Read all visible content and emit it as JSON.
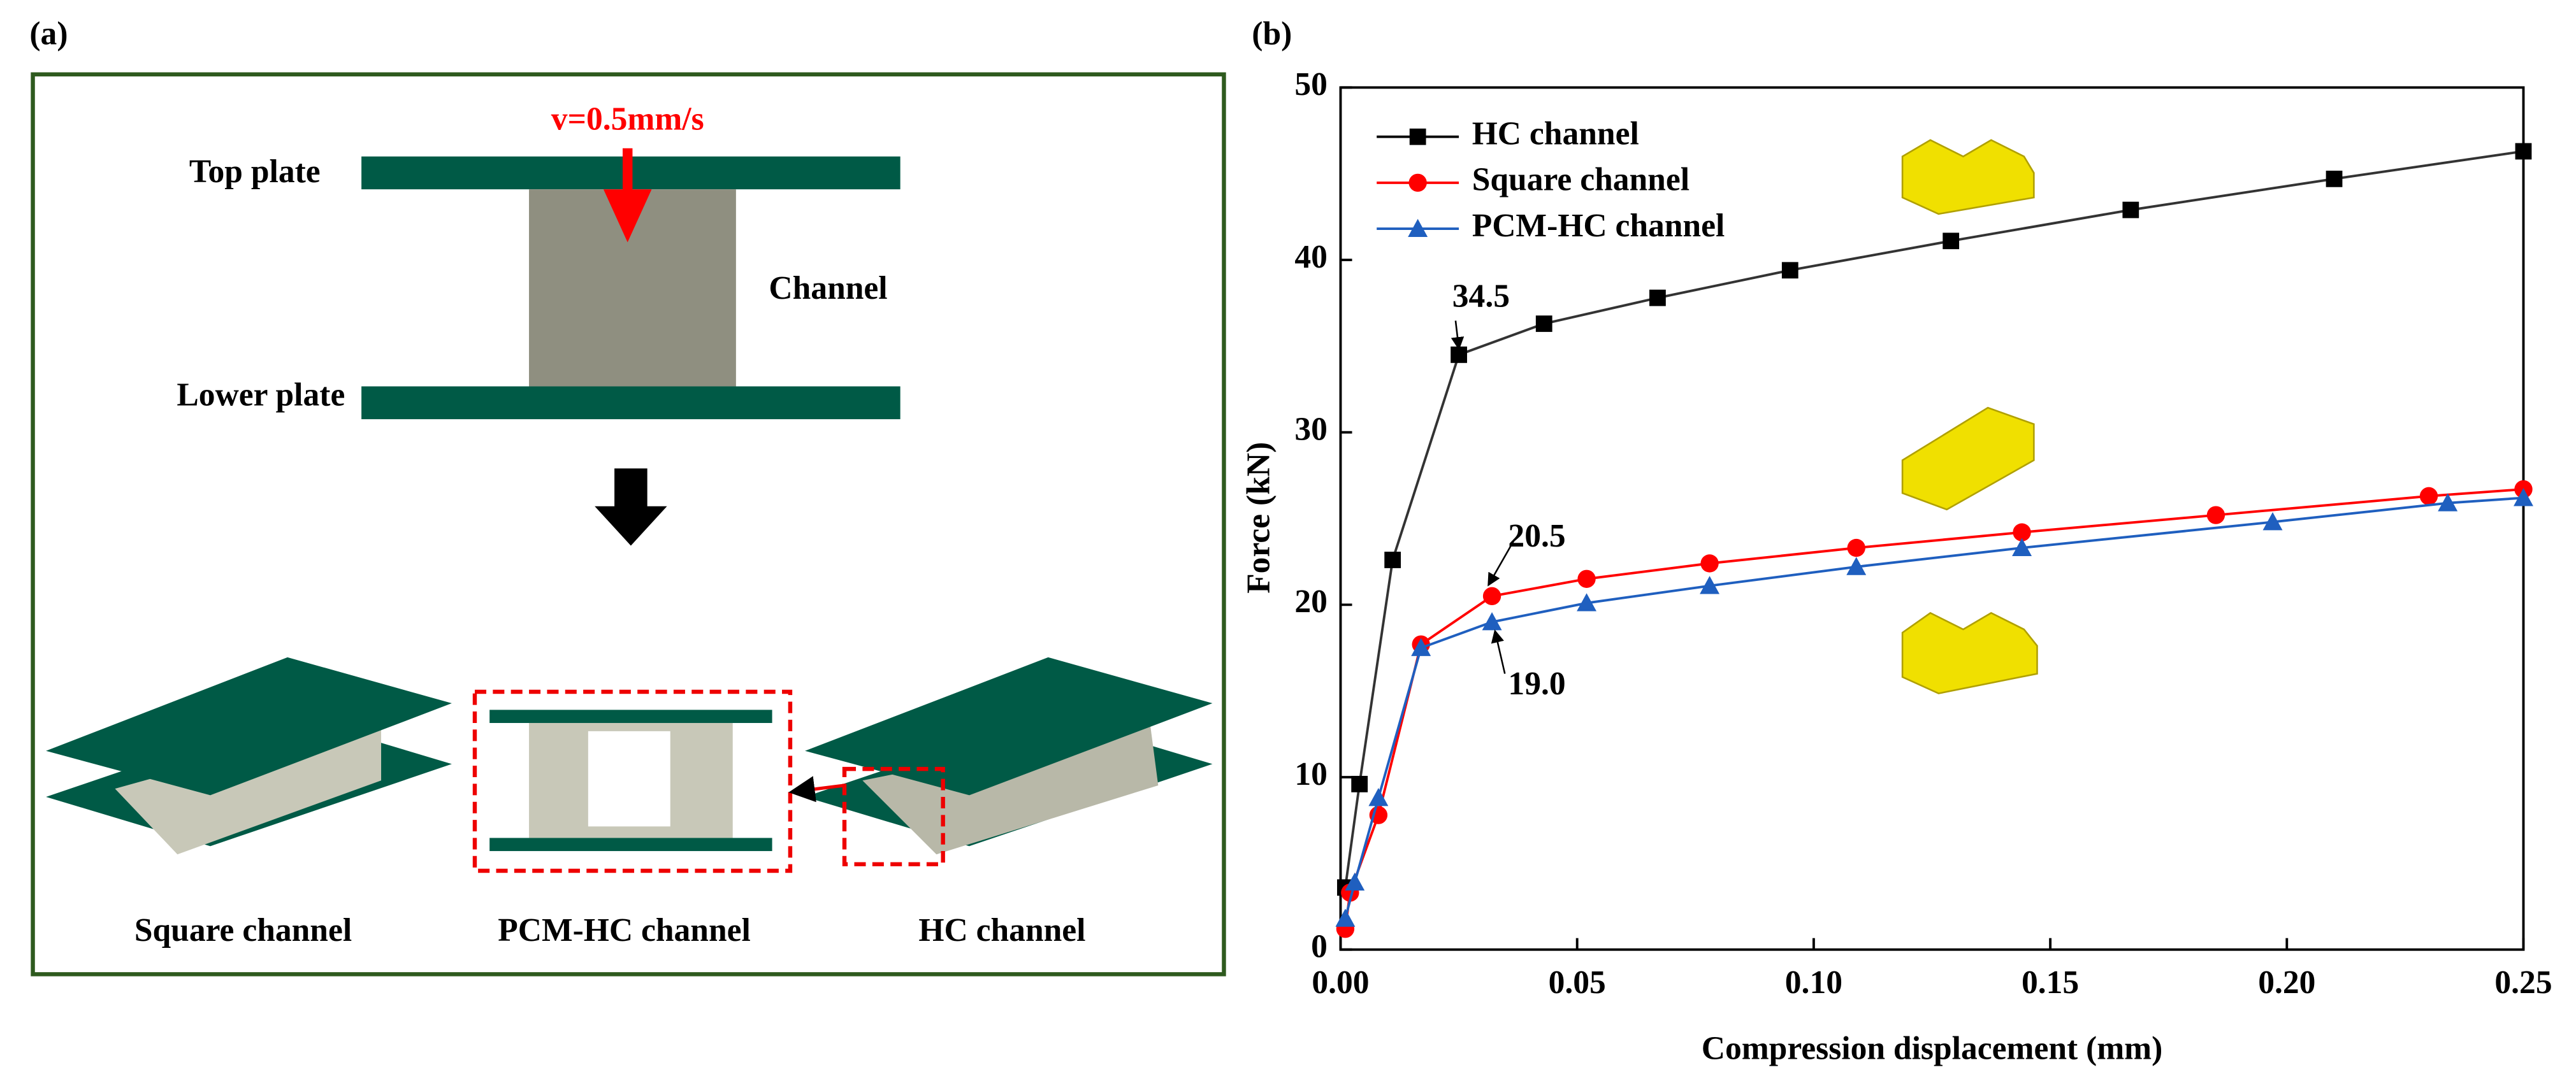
{
  "panel_a": {
    "label": "(a)",
    "velocity": "v=0.5mm/s",
    "top_plate": "Top plate",
    "channel": "Channel",
    "lower_plate": "Lower plate",
    "models": [
      "Square channel",
      "PCM-HC channel",
      "HC channel"
    ]
  },
  "chart_data": {
    "type": "line",
    "panel_label": "(b)",
    "xlabel": "Compression displacement (mm)",
    "ylabel": "Force (kN)",
    "xlim": [
      0,
      0.25
    ],
    "ylim": [
      0,
      50
    ],
    "xticks": [
      {
        "value": 0,
        "label": "0.00"
      },
      0.05,
      {
        "value": 0.1,
        "label": "0.10"
      },
      0.15,
      {
        "value": 0.2,
        "label": "0.20"
      },
      0.25
    ],
    "yticks": [
      0,
      10,
      20,
      30,
      40,
      50
    ],
    "legend": "upper left",
    "annotations": [
      "34.5",
      "20.5",
      "19.0"
    ],
    "series": [
      {
        "name": "HC channel",
        "color": "#000000",
        "marker": "square",
        "x": [
          0.001,
          0.004,
          0.011,
          0.025,
          0.043,
          0.067,
          0.095,
          0.129,
          0.167,
          0.21,
          0.25
        ],
        "values": [
          3.6,
          9.6,
          22.6,
          34.5,
          36.3,
          37.8,
          39.4,
          41.1,
          42.9,
          44.7,
          46.3
        ]
      },
      {
        "name": "Square channel",
        "color": "#ff0000",
        "marker": "circle",
        "x": [
          0.001,
          0.002,
          0.008,
          0.017,
          0.032,
          0.052,
          0.078,
          0.109,
          0.144,
          0.185,
          0.23,
          0.25
        ],
        "values": [
          1.2,
          3.3,
          7.8,
          17.7,
          20.5,
          21.5,
          22.4,
          23.3,
          24.2,
          25.2,
          26.3,
          26.7
        ]
      },
      {
        "name": "PCM-HC channel",
        "color": "#1f5fbf",
        "marker": "triangle",
        "x": [
          0.001,
          0.003,
          0.008,
          0.017,
          0.032,
          0.052,
          0.078,
          0.109,
          0.144,
          0.197,
          0.234,
          0.25
        ],
        "values": [
          1.8,
          3.9,
          8.8,
          17.5,
          19.0,
          20.1,
          21.1,
          22.2,
          23.3,
          24.8,
          25.9,
          26.2
        ]
      }
    ]
  }
}
